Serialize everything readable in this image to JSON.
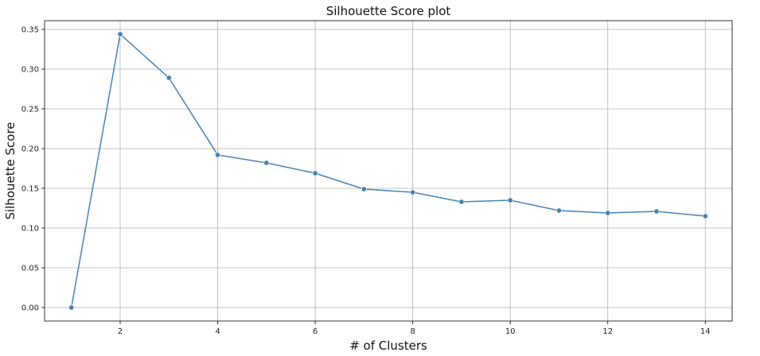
{
  "chart_data": {
    "type": "line",
    "title": "Silhouette Score plot",
    "xlabel": "# of Clusters",
    "ylabel": "Silhouette Score",
    "x": [
      1,
      2,
      3,
      4,
      5,
      6,
      7,
      8,
      9,
      10,
      11,
      12,
      13,
      14
    ],
    "series": [
      {
        "values": [
          0.0,
          0.344,
          0.289,
          0.192,
          0.182,
          0.169,
          0.149,
          0.145,
          0.133,
          0.135,
          0.122,
          0.119,
          0.121,
          0.115
        ],
        "color": "#4682b4",
        "marker": "circle"
      }
    ],
    "xlim": [
      0.45,
      14.55
    ],
    "ylim": [
      -0.017,
      0.361
    ],
    "xticks": [
      2,
      4,
      6,
      8,
      10,
      12,
      14
    ],
    "xtick_labels": [
      "2",
      "4",
      "6",
      "8",
      "10",
      "12",
      "14"
    ],
    "yticks": [
      0.0,
      0.05,
      0.1,
      0.15,
      0.2,
      0.25,
      0.3,
      0.35
    ],
    "ytick_labels": [
      "0.00",
      "0.05",
      "0.10",
      "0.15",
      "0.20",
      "0.25",
      "0.30",
      "0.35"
    ],
    "grid": true,
    "grid_color": "#b0b0b0"
  }
}
